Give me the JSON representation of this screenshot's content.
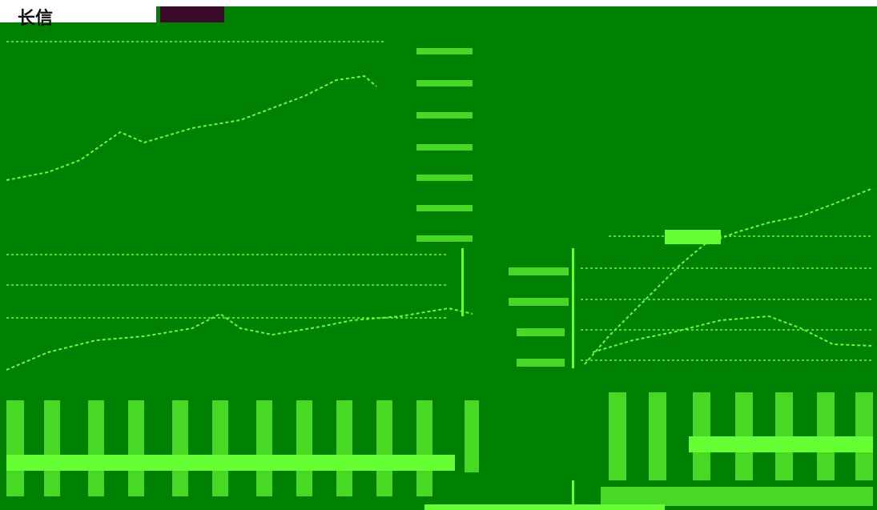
{
  "header": {
    "title": "长信"
  }
}
